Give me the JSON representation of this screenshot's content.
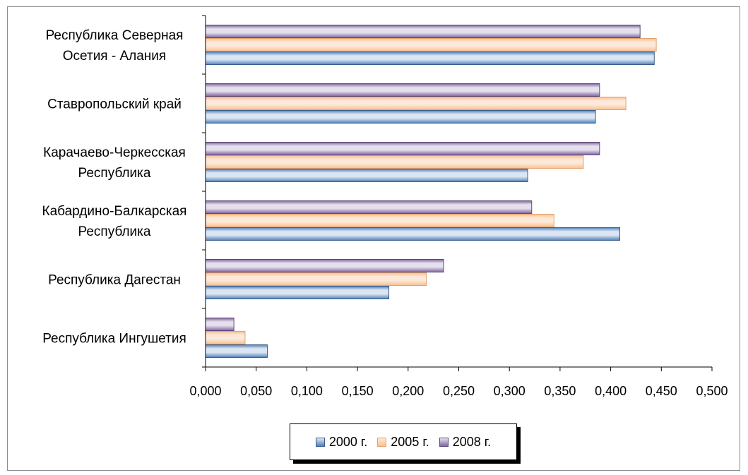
{
  "chart_data": {
    "type": "bar",
    "orientation": "horizontal",
    "categories": [
      [
        "Республика Северная",
        "Осетия - Алания"
      ],
      [
        "Ставропольский край"
      ],
      [
        "Карачаево-Черкесская",
        "Республика"
      ],
      [
        "Кабардино-Балкарская",
        "Республика"
      ],
      [
        "Республика Дагестан"
      ],
      [
        "Республика Ингушетия"
      ]
    ],
    "series": [
      {
        "name": "2000 г.",
        "values": [
          0.443,
          0.385,
          0.318,
          0.409,
          0.181,
          0.061
        ]
      },
      {
        "name": "2005 г.",
        "values": [
          0.445,
          0.415,
          0.373,
          0.344,
          0.218,
          0.039
        ]
      },
      {
        "name": "2008 г.",
        "values": [
          0.429,
          0.389,
          0.389,
          0.322,
          0.235,
          0.028
        ]
      }
    ],
    "xlim": [
      0,
      0.5
    ],
    "xticks": [
      0,
      0.05,
      0.1,
      0.15,
      0.2,
      0.25,
      0.3,
      0.35,
      0.4,
      0.45,
      0.5
    ],
    "xtick_labels": [
      "0,000",
      "0,050",
      "0,100",
      "0,150",
      "0,200",
      "0,250",
      "0,300",
      "0,350",
      "0,400",
      "0,450",
      "0,500"
    ],
    "title": "",
    "xlabel": "",
    "ylabel": "",
    "grid": false,
    "legend_position": "bottom",
    "colors": {
      "2000 г.": {
        "fill": "#4f81bd",
        "light": "#dce6f2",
        "border": "#385d8a"
      },
      "2005 г.": {
        "fill": "#fac090",
        "light": "#fde9d9",
        "border": "#e3a26b"
      },
      "2008 г.": {
        "fill": "#8064a2",
        "light": "#e5e0ec",
        "border": "#5c4776"
      }
    }
  },
  "legend": {
    "items": [
      "2000 г.",
      "2005 г.",
      "2008 г."
    ]
  }
}
